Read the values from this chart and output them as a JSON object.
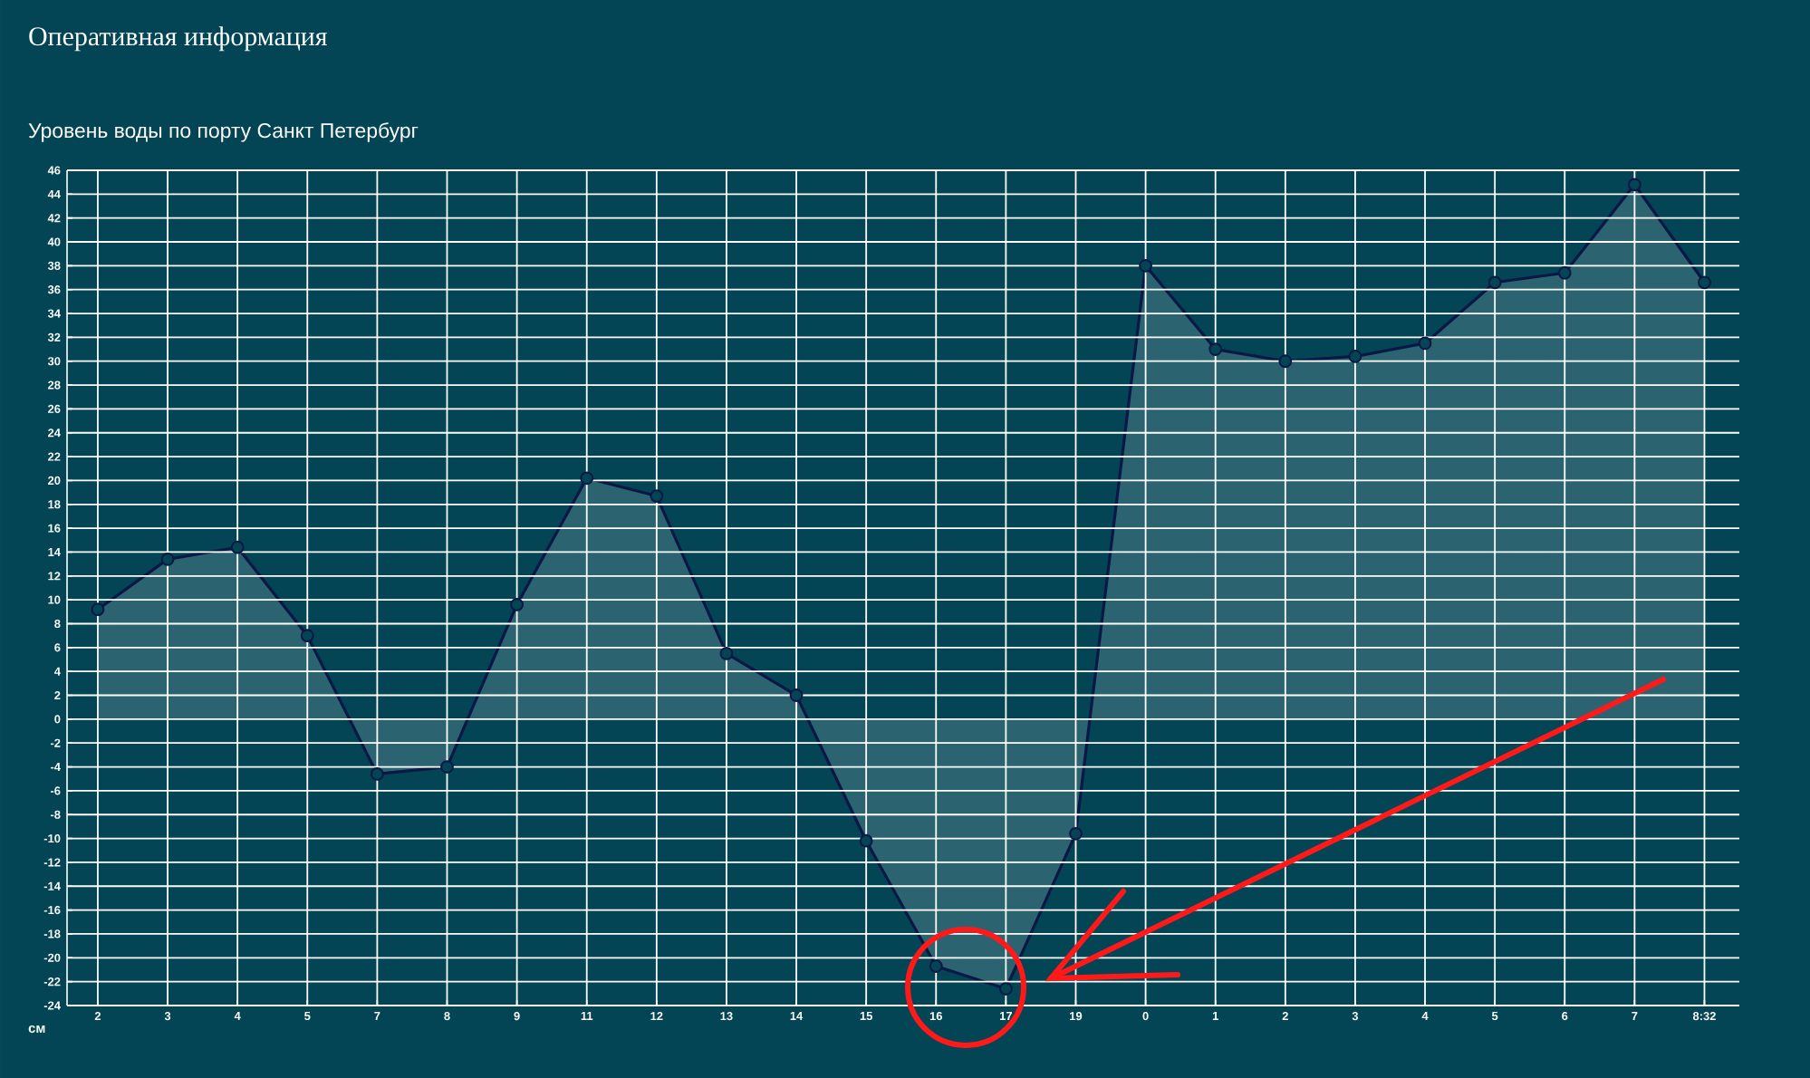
{
  "chart_data": {
    "type": "area",
    "title": "Оперативная информация",
    "subtitle": "Уровень воды по порту Санкт Петербург",
    "ylabel": "см",
    "categories": [
      "2",
      "3",
      "4",
      "5",
      "7",
      "8",
      "9",
      "11",
      "12",
      "13",
      "14",
      "15",
      "16",
      "17",
      "19",
      "0",
      "1",
      "2",
      "3",
      "4",
      "5",
      "6",
      "7",
      "8:32"
    ],
    "series": [
      {
        "color": "#0b1846",
        "values": [
          9.2,
          13.4,
          14.4,
          7,
          -4.6,
          -4,
          9.6,
          20.2,
          18.7,
          5.5,
          2,
          -10.2,
          -20.7,
          -22.6,
          -9.6,
          38,
          31,
          30,
          30.4,
          31.5,
          36.6,
          37.4,
          44.8,
          36.6
        ]
      }
    ],
    "ylim": [
      -24,
      46
    ],
    "yticks": [
      -24,
      -22,
      -20,
      -18,
      -16,
      -14,
      -12,
      -10,
      -8,
      -6,
      -4,
      -2,
      0,
      2,
      4,
      6,
      8,
      10,
      12,
      14,
      16,
      18,
      20,
      22,
      24,
      26,
      28,
      30,
      32,
      34,
      36,
      38,
      40,
      42,
      44,
      46
    ],
    "grid": true,
    "marker": "circle"
  }
}
